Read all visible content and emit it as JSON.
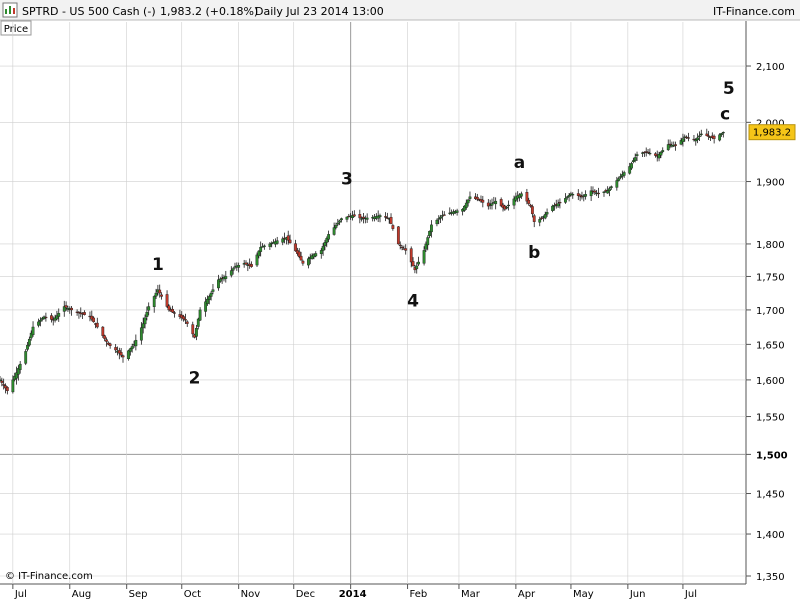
{
  "header": {
    "instrument": "SPTRD - US 500 Cash (-)",
    "last_change": "1,983.2 (+0.18%)",
    "timeframe_date": "Daily  Jul 23 2014 13:00",
    "brand": "IT-Finance.com"
  },
  "panel_label": "Price",
  "copyright": "© IT-Finance.com",
  "price_tag": "1,983.2",
  "colors": {
    "up": "#2e8b2e",
    "down": "#c0392b",
    "tag_bg": "#f5c518",
    "grid": "#cfcfcf"
  },
  "chart_data": {
    "type": "line",
    "y_scale": "log",
    "ylim": [
      1350,
      2160
    ],
    "y_ticks": [
      {
        "value": 2100,
        "label": "2,100",
        "bold": false
      },
      {
        "value": 2000,
        "label": "2,000",
        "bold": false
      },
      {
        "value": 1900,
        "label": "1,900",
        "bold": false
      },
      {
        "value": 1800,
        "label": "1,800",
        "bold": false
      },
      {
        "value": 1750,
        "label": "1,750",
        "bold": false
      },
      {
        "value": 1700,
        "label": "1,700",
        "bold": false
      },
      {
        "value": 1650,
        "label": "1,650",
        "bold": false
      },
      {
        "value": 1600,
        "label": "1,600",
        "bold": false
      },
      {
        "value": 1550,
        "label": "1,550",
        "bold": false
      },
      {
        "value": 1500,
        "label": "1,500",
        "bold": true
      },
      {
        "value": 1450,
        "label": "1,450",
        "bold": false
      },
      {
        "value": 1400,
        "label": "1,400",
        "bold": false
      },
      {
        "value": 1350,
        "label": "1,350",
        "bold": false
      }
    ],
    "x_ticks": [
      {
        "date": "2013-07-01",
        "label": "Jul",
        "bold": false
      },
      {
        "date": "2013-08-01",
        "label": "Aug",
        "bold": false
      },
      {
        "date": "2013-09-01",
        "label": "Sep",
        "bold": false
      },
      {
        "date": "2013-10-01",
        "label": "Oct",
        "bold": false
      },
      {
        "date": "2013-11-01",
        "label": "Nov",
        "bold": false
      },
      {
        "date": "2013-12-01",
        "label": "Dec",
        "bold": false
      },
      {
        "date": "2014-01-01",
        "label": "2014",
        "bold": true
      },
      {
        "date": "2014-02-01",
        "label": "Feb",
        "bold": false
      },
      {
        "date": "2014-03-01",
        "label": "Mar",
        "bold": false
      },
      {
        "date": "2014-04-01",
        "label": "Apr",
        "bold": false
      },
      {
        "date": "2014-05-01",
        "label": "May",
        "bold": false
      },
      {
        "date": "2014-06-01",
        "label": "Jun",
        "bold": false
      },
      {
        "date": "2014-07-01",
        "label": "Jul",
        "bold": false
      }
    ],
    "x_range": [
      "2013-06-24",
      "2014-07-31"
    ],
    "series": [
      {
        "dates": [
          "2013-06-24",
          "2013-06-28",
          "2013-07-03",
          "2013-07-08",
          "2013-07-12",
          "2013-07-18",
          "2013-07-23",
          "2013-07-29",
          "2013-08-02",
          "2013-08-07",
          "2013-08-12",
          "2013-08-16",
          "2013-08-22",
          "2013-08-27",
          "2013-08-30",
          "2013-09-05",
          "2013-09-10",
          "2013-09-13",
          "2013-09-18",
          "2013-09-24",
          "2013-09-30",
          "2013-10-03",
          "2013-10-08",
          "2013-10-11",
          "2013-10-16",
          "2013-10-21",
          "2013-10-25",
          "2013-10-30",
          "2013-11-04",
          "2013-11-08",
          "2013-11-13",
          "2013-11-18",
          "2013-11-22",
          "2013-11-27",
          "2013-12-03",
          "2013-12-06",
          "2013-12-11",
          "2013-12-16",
          "2013-12-20",
          "2013-12-27",
          "2014-01-02",
          "2014-01-07",
          "2014-01-13",
          "2014-01-17",
          "2014-01-22",
          "2014-01-27",
          "2014-01-31",
          "2014-02-05",
          "2014-02-10",
          "2014-02-14",
          "2014-02-20",
          "2014-02-25",
          "2014-03-03",
          "2014-03-07",
          "2014-03-12",
          "2014-03-17",
          "2014-03-21",
          "2014-03-26",
          "2014-04-01",
          "2014-04-04",
          "2014-04-09",
          "2014-04-11",
          "2014-04-15",
          "2014-04-21",
          "2014-04-25",
          "2014-05-01",
          "2014-05-07",
          "2014-05-12",
          "2014-05-16",
          "2014-05-21",
          "2014-05-27",
          "2014-06-02",
          "2014-06-06",
          "2014-06-11",
          "2014-06-17",
          "2014-06-23",
          "2014-06-27",
          "2014-07-02",
          "2014-07-08",
          "2014-07-11",
          "2014-07-16",
          "2014-07-18",
          "2014-07-23"
        ],
        "values": [
          1600,
          1585,
          1610,
          1640,
          1675,
          1690,
          1685,
          1705,
          1700,
          1695,
          1690,
          1675,
          1650,
          1640,
          1632,
          1650,
          1680,
          1705,
          1730,
          1700,
          1690,
          1685,
          1660,
          1700,
          1720,
          1745,
          1750,
          1765,
          1770,
          1765,
          1795,
          1800,
          1805,
          1810,
          1785,
          1770,
          1782,
          1790,
          1815,
          1840,
          1845,
          1840,
          1842,
          1845,
          1840,
          1800,
          1790,
          1760,
          1790,
          1830,
          1845,
          1850,
          1855,
          1875,
          1870,
          1860,
          1868,
          1855,
          1875,
          1880,
          1860,
          1835,
          1840,
          1860,
          1865,
          1880,
          1875,
          1885,
          1880,
          1885,
          1905,
          1925,
          1945,
          1950,
          1942,
          1962,
          1960,
          1975,
          1970,
          1980,
          1975,
          1972,
          1983
        ]
      }
    ],
    "annotations": [
      {
        "label": "1",
        "date": "2013-09-18",
        "value": 1760
      },
      {
        "label": "2",
        "date": "2013-10-08",
        "value": 1595
      },
      {
        "label": "3",
        "date": "2013-12-30",
        "value": 1895
      },
      {
        "label": "4",
        "date": "2014-02-04",
        "value": 1705
      },
      {
        "label": "a",
        "date": "2014-04-03",
        "value": 1922
      },
      {
        "label": "b",
        "date": "2014-04-11",
        "value": 1778
      },
      {
        "label": "c",
        "date": "2014-07-24",
        "value": 2005
      },
      {
        "label": "5",
        "date": "2014-07-26",
        "value": 2050
      }
    ]
  }
}
